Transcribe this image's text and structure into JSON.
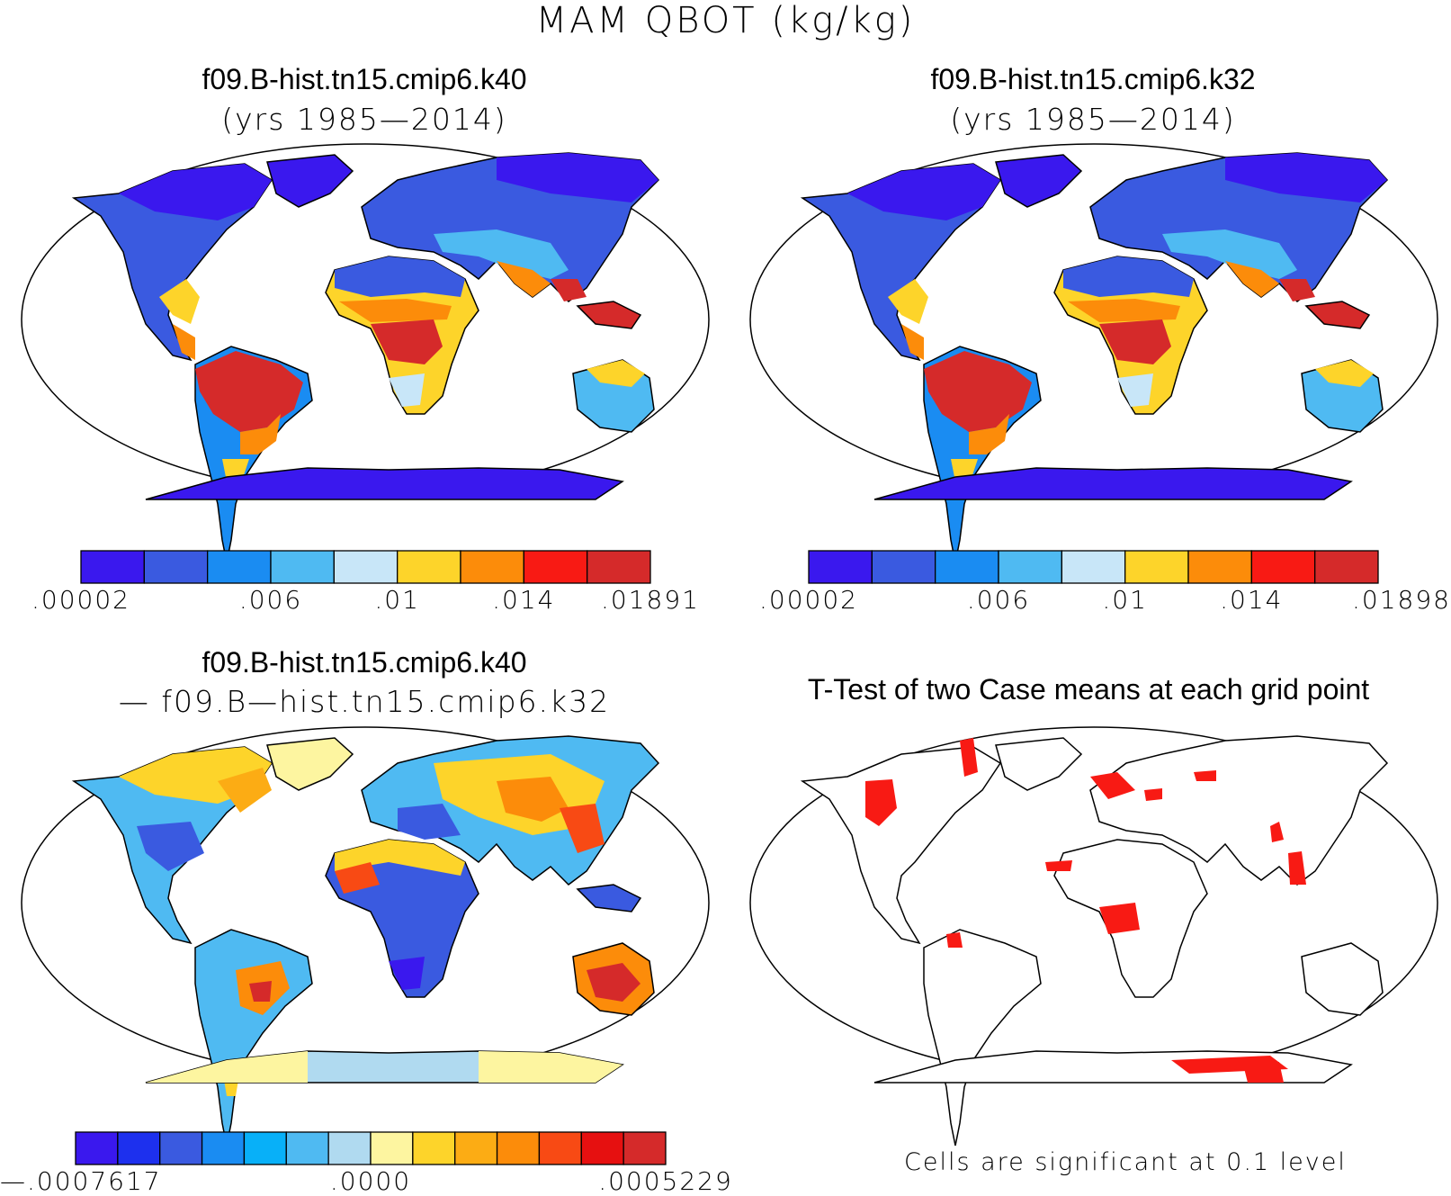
{
  "figure": {
    "title": "MAM QBOT (kg/kg)"
  },
  "panels": {
    "top_left": {
      "title": "f09.B-hist.tn15.cmip6.k40",
      "subtitle": "(yrs 1985—2014)",
      "colorbar": {
        "colors": [
          "#3a18ee",
          "#3a5ae0",
          "#1a8cf2",
          "#4fbaf2",
          "#c8e6f8",
          "#fdd42a",
          "#fc8c0a",
          "#f81a14",
          "#d52a2a"
        ],
        "labels": [
          ".00002",
          ".006",
          ".01",
          ".014",
          ".01891"
        ],
        "label_positions": [
          0,
          3,
          5,
          7,
          9
        ]
      }
    },
    "top_right": {
      "title": "f09.B-hist.tn15.cmip6.k32",
      "subtitle": "(yrs 1985—2014)",
      "colorbar": {
        "colors": [
          "#3a18ee",
          "#3a5ae0",
          "#1a8cf2",
          "#4fbaf2",
          "#c8e6f8",
          "#fdd42a",
          "#fc8c0a",
          "#f81a14",
          "#d52a2a"
        ],
        "labels": [
          ".00002",
          ".006",
          ".01",
          ".014",
          ".01898"
        ],
        "label_positions": [
          0,
          3,
          5,
          7,
          9
        ]
      }
    },
    "bottom_left": {
      "title": "f09.B-hist.tn15.cmip6.k40",
      "subtitle": "— f09.B—hist.tn15.cmip6.k32",
      "colorbar": {
        "colors": [
          "#3a18ee",
          "#1d30ee",
          "#3a5ae0",
          "#1a8cf2",
          "#08b0f8",
          "#4fbaf2",
          "#b0daf0",
          "#fdf5a0",
          "#fdd42a",
          "#fcac14",
          "#fc8c0a",
          "#f84a14",
          "#e61010",
          "#d52a2a"
        ],
        "labels": [
          "—.0007617",
          ".0000",
          ".0005229"
        ],
        "label_positions": [
          0,
          7,
          14
        ]
      }
    },
    "bottom_right": {
      "title": "T-Test of two Case means at each grid point",
      "footnote": "Cells are significant at 0.1 level",
      "significance_color": "#f81a14"
    }
  }
}
